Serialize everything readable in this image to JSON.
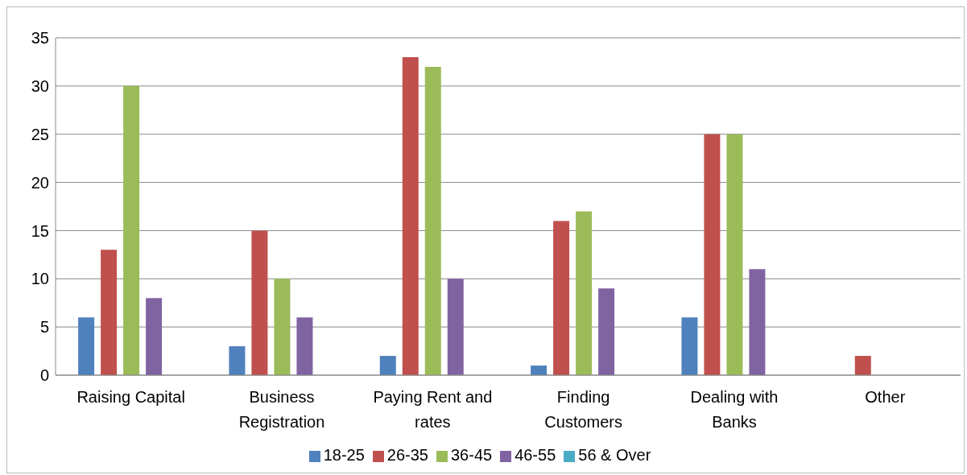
{
  "chart_data": {
    "type": "bar",
    "categories": [
      "Raising Capital",
      "Business Registration",
      "Paying Rent and rates",
      "Finding Customers",
      "Dealing with Banks",
      "Other"
    ],
    "series": [
      {
        "name": "18-25",
        "color": "#4f81bd",
        "values": [
          6,
          3,
          2,
          1,
          6,
          0
        ]
      },
      {
        "name": "26-35",
        "color": "#c0504d",
        "values": [
          13,
          15,
          33,
          16,
          25,
          2
        ]
      },
      {
        "name": "36-45",
        "color": "#9bbb59",
        "values": [
          30,
          10,
          32,
          17,
          25,
          0
        ]
      },
      {
        "name": "46-55",
        "color": "#8064a2",
        "values": [
          8,
          6,
          10,
          9,
          11,
          0
        ]
      },
      {
        "name": "56 & Over",
        "color": "#4bacc6",
        "values": [
          0,
          0,
          0,
          0,
          0,
          0
        ]
      }
    ],
    "ylim": [
      0,
      35
    ],
    "yticks": [
      0,
      5,
      10,
      15,
      20,
      25,
      30,
      35
    ],
    "grid": "y",
    "legend": "bottom"
  }
}
